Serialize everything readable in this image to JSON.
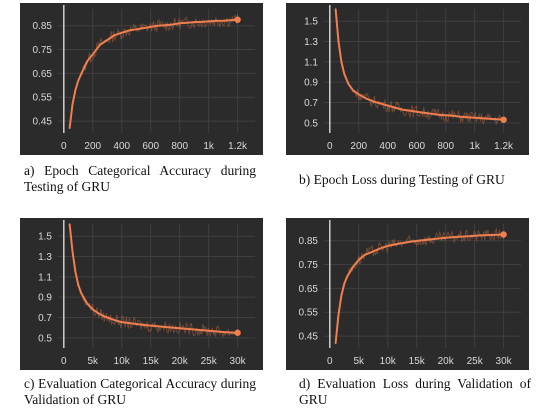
{
  "chart_data": [
    {
      "id": "a",
      "type": "line",
      "title": "",
      "caption": "a) Epoch Categorical Accuracy during Testing of GRU",
      "xlabel": "",
      "ylabel": "",
      "x_ticks": [
        0,
        200,
        400,
        600,
        800,
        1000,
        1200
      ],
      "x_tick_labels": [
        "0",
        "200",
        "400",
        "600",
        "800",
        "1k",
        "1.2k"
      ],
      "y_ticks": [
        0.45,
        0.55,
        0.65,
        0.75,
        0.85
      ],
      "y_tick_labels": [
        "0.45",
        "0.55",
        "0.65",
        "0.75",
        "0.85"
      ],
      "xlim": [
        -40,
        1320
      ],
      "ylim": [
        0.4,
        0.92
      ],
      "grid": true,
      "series": [
        {
          "color": "#f07f4e",
          "x": [
            40,
            60,
            80,
            100,
            130,
            160,
            200,
            250,
            300,
            350,
            400,
            450,
            500,
            550,
            600,
            650,
            700,
            750,
            800,
            850,
            900,
            950,
            1000,
            1050,
            1100,
            1150,
            1200
          ],
          "y": [
            0.42,
            0.52,
            0.58,
            0.62,
            0.66,
            0.7,
            0.73,
            0.77,
            0.79,
            0.81,
            0.82,
            0.83,
            0.835,
            0.84,
            0.845,
            0.85,
            0.852,
            0.855,
            0.86,
            0.862,
            0.865,
            0.866,
            0.868,
            0.87,
            0.871,
            0.873,
            0.875
          ]
        }
      ]
    },
    {
      "id": "b",
      "type": "line",
      "title": "",
      "caption": "b) Epoch Loss during Testing of GRU",
      "xlabel": "",
      "ylabel": "",
      "x_ticks": [
        0,
        200,
        400,
        600,
        800,
        1000,
        1200
      ],
      "x_tick_labels": [
        "0",
        "200",
        "400",
        "600",
        "800",
        "1k",
        "1.2k"
      ],
      "y_ticks": [
        0.5,
        0.7,
        0.9,
        1.1,
        1.3,
        1.5
      ],
      "y_tick_labels": [
        "0.5",
        "0.7",
        "0.9",
        "1.1",
        "1.3",
        "1.5"
      ],
      "xlim": [
        -40,
        1320
      ],
      "ylim": [
        0.4,
        1.62
      ],
      "grid": true,
      "series": [
        {
          "color": "#f07f4e",
          "x": [
            40,
            60,
            80,
            100,
            130,
            160,
            200,
            250,
            300,
            350,
            400,
            450,
            500,
            550,
            600,
            650,
            700,
            750,
            800,
            850,
            900,
            950,
            1000,
            1050,
            1100,
            1150,
            1200
          ],
          "y": [
            1.62,
            1.3,
            1.1,
            0.98,
            0.88,
            0.82,
            0.78,
            0.74,
            0.71,
            0.69,
            0.67,
            0.65,
            0.63,
            0.62,
            0.61,
            0.6,
            0.59,
            0.58,
            0.575,
            0.57,
            0.56,
            0.555,
            0.55,
            0.545,
            0.54,
            0.535,
            0.53
          ]
        }
      ]
    },
    {
      "id": "c",
      "type": "line",
      "title": "",
      "caption": "c) Evaluation Categorical Accuracy during Validation of GRU",
      "xlabel": "",
      "ylabel": "",
      "x_ticks": [
        0,
        5000,
        10000,
        15000,
        20000,
        25000,
        30000
      ],
      "x_tick_labels": [
        "0",
        "5k",
        "10k",
        "15k",
        "20k",
        "25k",
        "30k"
      ],
      "y_ticks": [
        0.5,
        0.7,
        0.9,
        1.1,
        1.3,
        1.5
      ],
      "y_tick_labels": [
        "0.5",
        "0.7",
        "0.9",
        "1.1",
        "1.3",
        "1.5"
      ],
      "xlim": [
        -1000,
        33000
      ],
      "ylim": [
        0.4,
        1.62
      ],
      "grid": true,
      "series": [
        {
          "color": "#f07f4e",
          "x": [
            1000,
            1500,
            2000,
            2500,
            3000,
            4000,
            5000,
            6000,
            7000,
            8000,
            9000,
            10000,
            12000,
            14000,
            16000,
            18000,
            20000,
            22000,
            24000,
            26000,
            28000,
            30000
          ],
          "y": [
            1.62,
            1.35,
            1.15,
            1.02,
            0.94,
            0.84,
            0.78,
            0.74,
            0.71,
            0.69,
            0.67,
            0.655,
            0.64,
            0.625,
            0.615,
            0.605,
            0.595,
            0.585,
            0.575,
            0.565,
            0.555,
            0.55
          ]
        }
      ]
    },
    {
      "id": "d",
      "type": "line",
      "title": "",
      "caption": "d) Evaluation Loss during Validation of GRU",
      "xlabel": "",
      "ylabel": "",
      "x_ticks": [
        0,
        5000,
        10000,
        15000,
        20000,
        25000,
        30000
      ],
      "x_tick_labels": [
        "0",
        "5k",
        "10k",
        "15k",
        "20k",
        "25k",
        "30k"
      ],
      "y_ticks": [
        0.45,
        0.55,
        0.65,
        0.75,
        0.85
      ],
      "y_tick_labels": [
        "0.45",
        "0.55",
        "0.65",
        "0.75",
        "0.85"
      ],
      "xlim": [
        -1000,
        33000
      ],
      "ylim": [
        0.4,
        0.92
      ],
      "grid": true,
      "series": [
        {
          "color": "#f07f4e",
          "x": [
            1000,
            1500,
            2000,
            2500,
            3000,
            4000,
            5000,
            6000,
            7000,
            8000,
            9000,
            10000,
            12000,
            14000,
            16000,
            18000,
            20000,
            22000,
            24000,
            26000,
            28000,
            30000
          ],
          "y": [
            0.42,
            0.54,
            0.62,
            0.67,
            0.7,
            0.74,
            0.77,
            0.79,
            0.8,
            0.81,
            0.82,
            0.828,
            0.838,
            0.846,
            0.852,
            0.857,
            0.862,
            0.866,
            0.869,
            0.872,
            0.874,
            0.876
          ]
        }
      ]
    }
  ]
}
